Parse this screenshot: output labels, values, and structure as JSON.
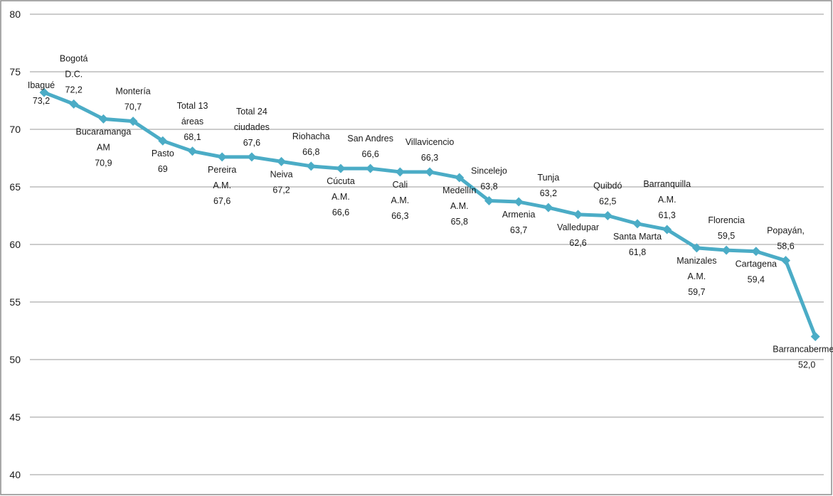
{
  "chart_data": {
    "type": "line",
    "title": "",
    "xlabel": "",
    "ylabel": "",
    "ylim": [
      40,
      80
    ],
    "yticks": [
      40,
      45,
      50,
      55,
      60,
      65,
      70,
      75,
      80
    ],
    "grid": true,
    "legend": "none",
    "colors": {
      "line": "#4bacc6",
      "grid": "#9a9a9a",
      "border": "#8c8c8c"
    },
    "points": [
      {
        "name": "Ibagué",
        "value": 73.2,
        "label_lines": [
          "Ibagué",
          "73,2"
        ]
      },
      {
        "name": "Bogotá D.C.",
        "value": 72.2,
        "label_lines": [
          "Bogotá",
          "D.C.",
          "72,2"
        ]
      },
      {
        "name": "Bucaramanga AM",
        "value": 70.9,
        "label_lines": [
          "Bucaramanga",
          "AM",
          "70,9"
        ]
      },
      {
        "name": "Montería",
        "value": 70.7,
        "label_lines": [
          "Montería",
          "70,7"
        ]
      },
      {
        "name": "Pasto",
        "value": 69,
        "label_lines": [
          "Pasto",
          "69"
        ]
      },
      {
        "name": "Total 13 áreas",
        "value": 68.1,
        "label_lines": [
          "Total 13",
          "áreas",
          "68,1"
        ]
      },
      {
        "name": "Pereira A.M.",
        "value": 67.6,
        "label_lines": [
          "Pereira",
          "A.M.",
          "67,6"
        ]
      },
      {
        "name": "Total 24 ciudades",
        "value": 67.6,
        "label_lines": [
          "Total 24",
          "ciudades",
          "67,6"
        ]
      },
      {
        "name": "Neiva",
        "value": 67.2,
        "label_lines": [
          "Neiva",
          "67,2"
        ]
      },
      {
        "name": "Riohacha",
        "value": 66.8,
        "label_lines": [
          "Riohacha",
          "66,8"
        ]
      },
      {
        "name": "Cúcuta A.M.",
        "value": 66.6,
        "label_lines": [
          "Cúcuta",
          "A.M.",
          "66,6"
        ]
      },
      {
        "name": "San Andres",
        "value": 66.6,
        "label_lines": [
          "San Andres",
          "66,6"
        ]
      },
      {
        "name": "Cali A.M.",
        "value": 66.3,
        "label_lines": [
          "Cali",
          "A.M.",
          "66,3"
        ]
      },
      {
        "name": "Villavicencio",
        "value": 66.3,
        "label_lines": [
          "Villavicencio",
          "66,3"
        ]
      },
      {
        "name": "Medellín A.M.",
        "value": 65.8,
        "label_lines": [
          "Medellín",
          "A.M.",
          "65,8"
        ]
      },
      {
        "name": "Sincelejo",
        "value": 63.8,
        "label_lines": [
          "Sincelejo",
          "63,8"
        ]
      },
      {
        "name": "Armenia",
        "value": 63.7,
        "label_lines": [
          "Armenia",
          "63,7"
        ]
      },
      {
        "name": "Tunja",
        "value": 63.2,
        "label_lines": [
          "Tunja",
          "63,2"
        ]
      },
      {
        "name": "Valledupar",
        "value": 62.6,
        "label_lines": [
          "Valledupar",
          "62,6"
        ]
      },
      {
        "name": "Quibdó",
        "value": 62.5,
        "label_lines": [
          "Quibdó",
          "62,5"
        ]
      },
      {
        "name": "Santa Marta",
        "value": 61.8,
        "label_lines": [
          "Santa Marta",
          "61,8"
        ]
      },
      {
        "name": "Barranquilla A.M.",
        "value": 61.3,
        "label_lines": [
          "Barranquilla",
          "A.M.",
          "61,3"
        ]
      },
      {
        "name": "Manizales A.M.",
        "value": 59.7,
        "label_lines": [
          "Manizales",
          "A.M.",
          "59,7"
        ]
      },
      {
        "name": "Florencia",
        "value": 59.5,
        "label_lines": [
          "Florencia",
          "59,5"
        ]
      },
      {
        "name": "Cartagena",
        "value": 59.4,
        "label_lines": [
          "Cartagena",
          "59,4"
        ]
      },
      {
        "name": "Popayán",
        "value": 58.6,
        "label_lines": [
          "Popayán,",
          "58,6"
        ]
      },
      {
        "name": "Barrancabermeja",
        "value": 52.0,
        "label_lines": [
          "Barrancabermeja",
          "52,0"
        ]
      }
    ]
  }
}
